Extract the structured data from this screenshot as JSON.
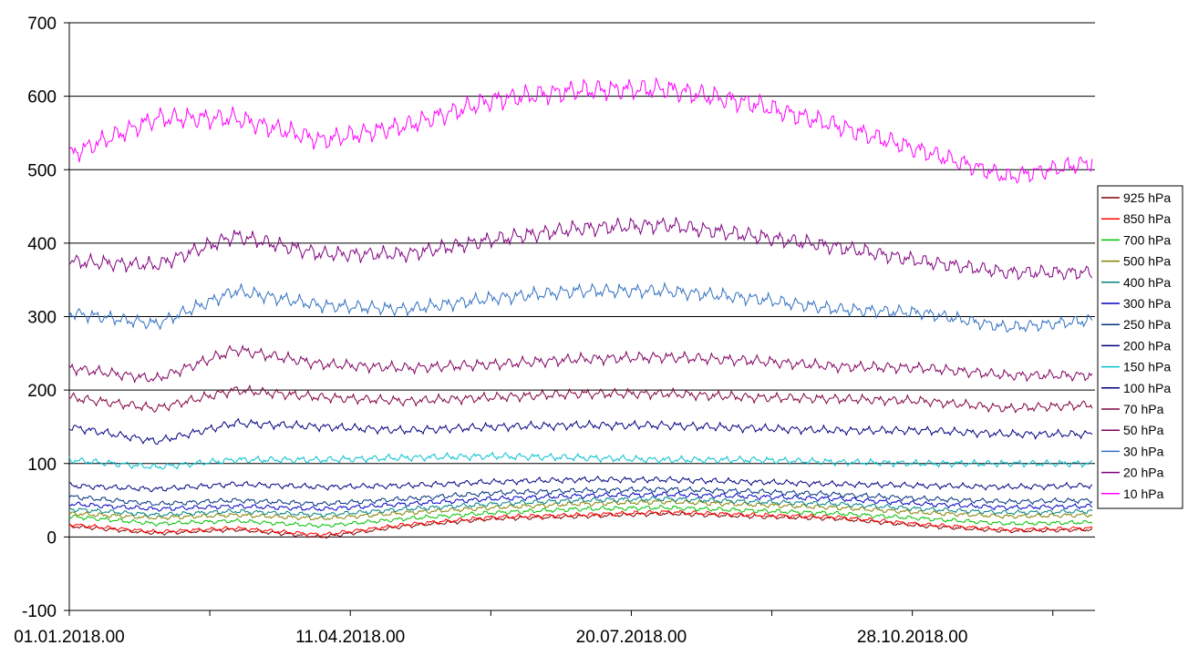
{
  "chart_data": {
    "type": "line",
    "title": "",
    "xlabel": "",
    "ylabel": "",
    "ylim": [
      -100,
      700
    ],
    "yticks": [
      -100,
      0,
      100,
      200,
      300,
      400,
      500,
      600,
      700
    ],
    "ytick_labels": [
      "-100",
      "0",
      "100",
      "200",
      "300",
      "400",
      "500",
      "600",
      "700"
    ],
    "xlim": [
      "2018-01-01",
      "2019-01-01"
    ],
    "x_tick_interval_days": 50,
    "x_tick_labels": [
      {
        "date": "2018-01-01",
        "label": "01.01.2018.00"
      },
      {
        "date": "2018-04-11",
        "label": "11.04.2018.00"
      },
      {
        "date": "2018-07-20",
        "label": "20.07.2018.00"
      },
      {
        "date": "2018-10-28",
        "label": "28.10.2018.00"
      }
    ],
    "grid": "horizontal",
    "legend_position": "right",
    "series": [
      {
        "name": "925 hPa",
        "color": "#800000",
        "x": [
          "2018-01-01",
          "2018-02-01",
          "2018-03-01",
          "2018-04-01",
          "2018-05-01",
          "2018-06-01",
          "2018-07-01",
          "2018-08-01",
          "2018-09-01",
          "2018-10-01",
          "2018-11-01",
          "2018-12-01",
          "2018-12-31"
        ],
        "values": [
          15,
          5,
          10,
          0,
          15,
          25,
          28,
          32,
          28,
          25,
          15,
          8,
          10
        ]
      },
      {
        "name": "850 hPa",
        "color": "#ff0000",
        "x": [
          "2018-01-01",
          "2018-02-01",
          "2018-03-01",
          "2018-04-01",
          "2018-05-01",
          "2018-06-01",
          "2018-07-01",
          "2018-08-01",
          "2018-09-01",
          "2018-10-01",
          "2018-11-01",
          "2018-12-01",
          "2018-12-31"
        ],
        "values": [
          17,
          7,
          12,
          3,
          17,
          27,
          30,
          34,
          30,
          27,
          17,
          10,
          12
        ]
      },
      {
        "name": "700 hPa",
        "color": "#00c000",
        "x": [
          "2018-01-01",
          "2018-02-01",
          "2018-03-01",
          "2018-04-01",
          "2018-05-01",
          "2018-06-01",
          "2018-07-01",
          "2018-08-01",
          "2018-09-01",
          "2018-10-01",
          "2018-11-01",
          "2018-12-01",
          "2018-12-31"
        ],
        "values": [
          28,
          18,
          22,
          15,
          25,
          33,
          38,
          40,
          36,
          32,
          25,
          18,
          20
        ]
      },
      {
        "name": "500 hPa",
        "color": "#808000",
        "x": [
          "2018-01-01",
          "2018-02-01",
          "2018-03-01",
          "2018-04-01",
          "2018-05-01",
          "2018-06-01",
          "2018-07-01",
          "2018-08-01",
          "2018-09-01",
          "2018-10-01",
          "2018-11-01",
          "2018-12-01",
          "2018-12-31"
        ],
        "values": [
          32,
          26,
          30,
          25,
          33,
          40,
          45,
          48,
          44,
          40,
          33,
          28,
          30
        ]
      },
      {
        "name": "400 hPa",
        "color": "#008080",
        "x": [
          "2018-01-01",
          "2018-02-01",
          "2018-03-01",
          "2018-04-01",
          "2018-05-01",
          "2018-06-01",
          "2018-07-01",
          "2018-08-01",
          "2018-09-01",
          "2018-10-01",
          "2018-11-01",
          "2018-12-01",
          "2018-12-31"
        ],
        "values": [
          38,
          30,
          35,
          30,
          38,
          45,
          50,
          52,
          48,
          45,
          38,
          33,
          35
        ]
      },
      {
        "name": "300 hPa",
        "color": "#0000c0",
        "x": [
          "2018-01-01",
          "2018-02-01",
          "2018-03-01",
          "2018-04-01",
          "2018-05-01",
          "2018-06-01",
          "2018-07-01",
          "2018-08-01",
          "2018-09-01",
          "2018-10-01",
          "2018-11-01",
          "2018-12-01",
          "2018-12-31"
        ],
        "values": [
          45,
          38,
          42,
          38,
          45,
          52,
          56,
          58,
          55,
          52,
          45,
          40,
          42
        ]
      },
      {
        "name": "250 hPa",
        "color": "#003080",
        "x": [
          "2018-01-01",
          "2018-02-01",
          "2018-03-01",
          "2018-04-01",
          "2018-05-01",
          "2018-06-01",
          "2018-07-01",
          "2018-08-01",
          "2018-09-01",
          "2018-10-01",
          "2018-11-01",
          "2018-12-01",
          "2018-12-31"
        ],
        "values": [
          55,
          45,
          50,
          45,
          52,
          60,
          63,
          65,
          62,
          58,
          52,
          48,
          50
        ]
      },
      {
        "name": "200 hPa",
        "color": "#000080",
        "x": [
          "2018-01-01",
          "2018-02-01",
          "2018-03-01",
          "2018-04-01",
          "2018-05-01",
          "2018-06-01",
          "2018-07-01",
          "2018-08-01",
          "2018-09-01",
          "2018-10-01",
          "2018-11-01",
          "2018-12-01",
          "2018-12-31"
        ],
        "values": [
          70,
          65,
          72,
          68,
          70,
          75,
          78,
          78,
          75,
          72,
          70,
          68,
          70
        ]
      },
      {
        "name": "150 hPa",
        "color": "#00c0d0",
        "x": [
          "2018-01-01",
          "2018-02-01",
          "2018-03-01",
          "2018-04-01",
          "2018-05-01",
          "2018-06-01",
          "2018-07-01",
          "2018-08-01",
          "2018-09-01",
          "2018-10-01",
          "2018-11-01",
          "2018-12-01",
          "2018-12-31"
        ],
        "values": [
          105,
          95,
          105,
          105,
          108,
          110,
          108,
          105,
          105,
          102,
          100,
          100,
          100
        ]
      },
      {
        "name": "100 hPa",
        "color": "#000080",
        "x": [
          "2018-01-01",
          "2018-02-01",
          "2018-03-01",
          "2018-04-01",
          "2018-05-01",
          "2018-06-01",
          "2018-07-01",
          "2018-08-01",
          "2018-09-01",
          "2018-10-01",
          "2018-11-01",
          "2018-12-01",
          "2018-12-31"
        ],
        "values": [
          150,
          130,
          155,
          150,
          145,
          150,
          152,
          152,
          148,
          145,
          145,
          140,
          140
        ]
      },
      {
        "name": "70 hPa",
        "color": "#800040",
        "x": [
          "2018-01-01",
          "2018-02-01",
          "2018-03-01",
          "2018-04-01",
          "2018-05-01",
          "2018-06-01",
          "2018-07-01",
          "2018-08-01",
          "2018-09-01",
          "2018-10-01",
          "2018-11-01",
          "2018-12-01",
          "2018-12-31"
        ],
        "values": [
          190,
          175,
          200,
          190,
          185,
          190,
          195,
          195,
          190,
          188,
          185,
          175,
          180
        ]
      },
      {
        "name": "50 hPa",
        "color": "#800060",
        "x": [
          "2018-01-01",
          "2018-02-01",
          "2018-03-01",
          "2018-04-01",
          "2018-05-01",
          "2018-06-01",
          "2018-07-01",
          "2018-08-01",
          "2018-09-01",
          "2018-10-01",
          "2018-11-01",
          "2018-12-01",
          "2018-12-31"
        ],
        "values": [
          230,
          215,
          255,
          235,
          230,
          235,
          242,
          245,
          240,
          232,
          230,
          220,
          220
        ]
      },
      {
        "name": "30 hPa",
        "color": "#3070c0",
        "x": [
          "2018-01-01",
          "2018-02-01",
          "2018-03-01",
          "2018-04-01",
          "2018-05-01",
          "2018-06-01",
          "2018-07-01",
          "2018-08-01",
          "2018-09-01",
          "2018-10-01",
          "2018-11-01",
          "2018-12-01",
          "2018-12-31"
        ],
        "values": [
          305,
          290,
          335,
          315,
          310,
          325,
          335,
          335,
          325,
          310,
          305,
          285,
          295
        ]
      },
      {
        "name": "20 hPa",
        "color": "#800080",
        "x": [
          "2018-01-01",
          "2018-02-01",
          "2018-03-01",
          "2018-04-01",
          "2018-05-01",
          "2018-06-01",
          "2018-07-01",
          "2018-08-01",
          "2018-09-01",
          "2018-10-01",
          "2018-11-01",
          "2018-12-01",
          "2018-12-31"
        ],
        "values": [
          375,
          370,
          410,
          385,
          385,
          405,
          420,
          425,
          410,
          395,
          375,
          360,
          360
        ]
      },
      {
        "name": "10 hPa",
        "color": "#ff00ff",
        "x": [
          "2018-01-01",
          "2018-02-01",
          "2018-03-01",
          "2018-04-01",
          "2018-05-01",
          "2018-06-01",
          "2018-07-01",
          "2018-08-01",
          "2018-09-01",
          "2018-10-01",
          "2018-11-01",
          "2018-12-01",
          "2018-12-31"
        ],
        "values": [
          520,
          570,
          570,
          540,
          560,
          595,
          608,
          610,
          590,
          560,
          525,
          490,
          510
        ]
      }
    ]
  }
}
